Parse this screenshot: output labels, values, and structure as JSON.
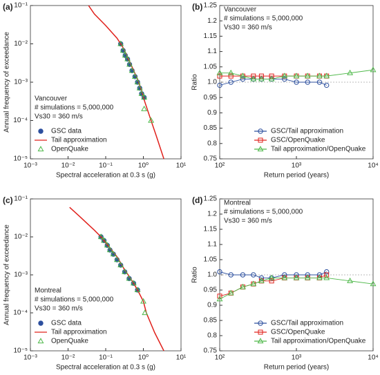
{
  "chart_data": [
    {
      "type": "line",
      "label": "(a)",
      "xlog": true,
      "ylog": true,
      "xlabel": "Spectral acceleration at 0.3 s (g)",
      "ylabel": "Annual frequency of exceedance",
      "annotation": [
        "Vancouver",
        "# simulations = 5,000,000",
        "Vs30 = 360 m/s"
      ],
      "legend": "lower left",
      "xlim": [
        0.001,
        10
      ],
      "ylim": [
        1e-05,
        0.1
      ],
      "xticks": [
        {
          "value": 0.001,
          "label": "10⁻³"
        },
        {
          "value": 0.01,
          "label": "10⁻²"
        },
        {
          "value": 0.1,
          "label": "10⁻¹"
        },
        {
          "value": 1,
          "label": "10⁰"
        },
        {
          "value": 10,
          "label": "10¹"
        }
      ],
      "yticks": [
        {
          "value": 1e-05,
          "label": "10⁻⁵"
        },
        {
          "value": 0.0001,
          "label": "10⁻⁴"
        },
        {
          "value": 0.001,
          "label": "10⁻³"
        },
        {
          "value": 0.01,
          "label": "10⁻²"
        },
        {
          "value": 0.1,
          "label": "10⁻¹"
        }
      ],
      "series": [
        {
          "name": "GSC data",
          "color": "#2c4f9e",
          "marker": "circle",
          "filled": true,
          "line": false,
          "x": [
            0.25,
            0.29,
            0.33,
            0.38,
            0.43,
            0.5,
            0.6,
            0.7,
            0.8,
            0.9,
            1.05
          ],
          "values": [
            0.01,
            0.0067,
            0.005,
            0.004,
            0.0029,
            0.002,
            0.0014,
            0.001,
            0.0007,
            0.0005,
            0.0004
          ]
        },
        {
          "name": "Tail approximation",
          "color": "#e0201b",
          "marker": null,
          "filled": false,
          "line": true,
          "x": [
            0.035,
            0.05,
            0.1,
            0.2,
            0.25,
            0.3,
            0.4,
            0.5,
            0.7,
            0.9,
            1.1,
            1.6,
            2.2,
            3.5
          ],
          "values": [
            0.1,
            0.06,
            0.03,
            0.014,
            0.01,
            0.0075,
            0.004,
            0.0025,
            0.0012,
            0.0006,
            0.0003,
            0.0001,
            4e-05,
            1e-05
          ]
        },
        {
          "name": "OpenQuake",
          "color": "#4db848",
          "marker": "triangle",
          "filled": false,
          "line": false,
          "x": [
            0.25,
            0.29,
            0.33,
            0.38,
            0.43,
            0.5,
            0.6,
            0.7,
            0.8,
            0.9,
            1.05,
            1.05,
            1.6
          ],
          "values": [
            0.01,
            0.0067,
            0.005,
            0.004,
            0.0029,
            0.002,
            0.0014,
            0.001,
            0.0007,
            0.0005,
            0.0004,
            0.0002,
            0.0001
          ]
        }
      ]
    },
    {
      "type": "line",
      "label": "(b)",
      "xlog": true,
      "ylog": false,
      "xlabel": "Return period (years)",
      "ylabel": "Ratio",
      "annotation": [
        "Vancouver",
        "# simulations = 5,000,000",
        "Vs30 = 360 m/s"
      ],
      "legend": "lower right",
      "hline": 1,
      "xlim": [
        100,
        10000
      ],
      "ylim": [
        0.75,
        1.25
      ],
      "xticks": [
        {
          "value": 100,
          "label": "10²"
        },
        {
          "value": 1000,
          "label": "10³"
        },
        {
          "value": 10000,
          "label": "10⁴"
        }
      ],
      "yticks": [
        0.75,
        0.8,
        0.85,
        0.9,
        0.95,
        {
          "value": 1,
          "label": "1.0"
        },
        1.05,
        1.1,
        1.15,
        1.2,
        1.25
      ],
      "series": [
        {
          "name": "GSC/Tail approximation",
          "color": "#2c4f9e",
          "marker": "circle",
          "filled": false,
          "line": true,
          "x": [
            100,
            140,
            200,
            275,
            350,
            475,
            700,
            1000,
            1400,
            2000,
            2475
          ],
          "values": [
            0.99,
            1.0,
            1.01,
            1.01,
            1.01,
            1.01,
            1.01,
            1.0,
            1.0,
            1.0,
            0.99
          ]
        },
        {
          "name": "GSC/OpenQuake",
          "color": "#e0201b",
          "marker": "square",
          "filled": false,
          "line": true,
          "x": [
            100,
            140,
            200,
            275,
            350,
            475,
            700,
            1000,
            1400,
            2000,
            2475
          ],
          "values": [
            1.02,
            1.02,
            1.02,
            1.02,
            1.02,
            1.02,
            1.02,
            1.02,
            1.02,
            1.02,
            1.02
          ]
        },
        {
          "name": "Tail approximation/OpenQuake",
          "color": "#4db848",
          "marker": "triangle",
          "filled": false,
          "line": true,
          "x": [
            100,
            140,
            200,
            275,
            350,
            475,
            700,
            1000,
            1400,
            2000,
            2475,
            5000,
            10000
          ],
          "values": [
            1.03,
            1.03,
            1.02,
            1.01,
            1.01,
            1.01,
            1.02,
            1.02,
            1.02,
            1.02,
            1.02,
            1.03,
            1.04
          ]
        }
      ]
    },
    {
      "type": "line",
      "label": "(c)",
      "xlog": true,
      "ylog": true,
      "xlabel": "Spectral acceleration at 0.3 s (g)",
      "ylabel": "Annual frequency of exceedance",
      "annotation": [
        "Montreal",
        "# simulations = 5,000,000",
        "Vs30 = 360 m/s"
      ],
      "legend": "lower left",
      "xlim": [
        0.001,
        10
      ],
      "ylim": [
        1e-05,
        0.1
      ],
      "xticks": [
        {
          "value": 0.001,
          "label": "10⁻³"
        },
        {
          "value": 0.01,
          "label": "10⁻²"
        },
        {
          "value": 0.1,
          "label": "10⁻¹"
        },
        {
          "value": 1,
          "label": "10⁰"
        },
        {
          "value": 10,
          "label": "10¹"
        }
      ],
      "yticks": [
        {
          "value": 1e-05,
          "label": "10⁻⁵"
        },
        {
          "value": 0.0001,
          "label": "10⁻⁴"
        },
        {
          "value": 0.001,
          "label": "10⁻³"
        },
        {
          "value": 0.01,
          "label": "10⁻²"
        },
        {
          "value": 0.1,
          "label": "10⁻¹"
        }
      ],
      "series": [
        {
          "name": "GSC data",
          "color": "#2c4f9e",
          "marker": "circle",
          "filled": true,
          "line": false,
          "x": [
            0.075,
            0.09,
            0.11,
            0.13,
            0.16,
            0.2,
            0.25,
            0.32,
            0.42,
            0.55,
            0.7
          ],
          "values": [
            0.01,
            0.008,
            0.006,
            0.0045,
            0.0035,
            0.0025,
            0.0018,
            0.0012,
            0.0008,
            0.0006,
            0.0004
          ]
        },
        {
          "name": "Tail approximation",
          "color": "#e0201b",
          "marker": null,
          "filled": false,
          "line": true,
          "x": [
            0.011,
            0.02,
            0.05,
            0.075,
            0.1,
            0.2,
            0.3,
            0.5,
            0.7,
            1.0,
            1.2,
            2,
            3.5
          ],
          "values": [
            0.06,
            0.035,
            0.015,
            0.01,
            0.007,
            0.003,
            0.0015,
            0.0007,
            0.0004,
            0.0002,
            0.0001,
            3e-05,
            1e-05
          ]
        },
        {
          "name": "OpenQuake",
          "color": "#4db848",
          "marker": "triangle",
          "filled": false,
          "line": false,
          "x": [
            0.075,
            0.09,
            0.11,
            0.13,
            0.16,
            0.2,
            0.25,
            0.32,
            0.42,
            0.55,
            0.7,
            1.0,
            1.1
          ],
          "values": [
            0.01,
            0.008,
            0.006,
            0.0045,
            0.0035,
            0.0025,
            0.0018,
            0.0012,
            0.0008,
            0.0006,
            0.0004,
            0.0002,
            0.0001
          ]
        }
      ]
    },
    {
      "type": "line",
      "label": "(d)",
      "xlog": true,
      "ylog": false,
      "xlabel": "Return period (years)",
      "ylabel": "Ratio",
      "annotation": [
        "Montreal",
        "# simulations = 5,000,000",
        "Vs30 = 360 m/s"
      ],
      "legend": "lower right",
      "hline": 1,
      "xlim": [
        100,
        10000
      ],
      "ylim": [
        0.75,
        1.25
      ],
      "xticks": [
        {
          "value": 100,
          "label": "10²"
        },
        {
          "value": 1000,
          "label": "10³"
        },
        {
          "value": 10000,
          "label": "10⁴"
        }
      ],
      "yticks": [
        0.75,
        0.8,
        0.85,
        0.9,
        0.95,
        {
          "value": 1,
          "label": "1.0"
        },
        1.05,
        1.1,
        1.15,
        1.2,
        1.25
      ],
      "series": [
        {
          "name": "GSC/Tail approximation",
          "color": "#2c4f9e",
          "marker": "circle",
          "filled": false,
          "line": true,
          "x": [
            100,
            140,
            200,
            275,
            350,
            475,
            700,
            1000,
            1400,
            2000,
            2475
          ],
          "values": [
            1.01,
            1.0,
            1.0,
            1.0,
            0.99,
            0.99,
            1.0,
            1.0,
            1.0,
            1.0,
            1.01
          ]
        },
        {
          "name": "GSC/OpenQuake",
          "color": "#e0201b",
          "marker": "square",
          "filled": false,
          "line": true,
          "x": [
            100,
            140,
            200,
            275,
            350,
            475,
            700,
            1000,
            1400,
            2000,
            2475
          ],
          "values": [
            0.93,
            0.94,
            0.96,
            0.97,
            0.98,
            0.98,
            0.99,
            0.99,
            0.99,
            0.99,
            1.0
          ]
        },
        {
          "name": "Tail approximation/OpenQuake",
          "color": "#4db848",
          "marker": "triangle",
          "filled": false,
          "line": true,
          "x": [
            100,
            140,
            200,
            275,
            350,
            475,
            700,
            1000,
            1400,
            2000,
            2475,
            5000,
            10000
          ],
          "values": [
            0.92,
            0.94,
            0.96,
            0.97,
            0.98,
            0.99,
            0.99,
            0.99,
            0.99,
            0.99,
            0.99,
            0.98,
            0.97
          ]
        }
      ]
    }
  ]
}
